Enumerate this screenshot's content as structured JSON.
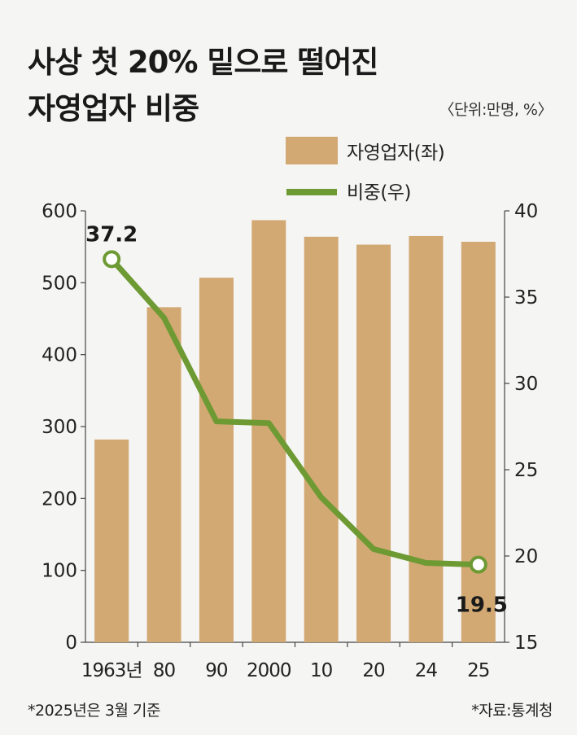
{
  "title_line1": "사상 첫 20% 밑으로 떨어진",
  "title_line2": "자영업자 비중",
  "unit": "〈단위:만명, %〉",
  "footnote": "*2025년은 3월 기준",
  "source": "*자료:통계청",
  "colors": {
    "bar": "#d2a873",
    "line": "#6e9a34",
    "background": "#f5f5f3"
  },
  "chart_data": {
    "type": "bar+line",
    "categories": [
      "1963년",
      "80",
      "90",
      "2000",
      "10",
      "20",
      "24",
      "25"
    ],
    "series": [
      {
        "name": "자영업자(좌)",
        "type": "bar",
        "axis": "left",
        "values": [
          282,
          466,
          507,
          587,
          564,
          553,
          565,
          557
        ]
      },
      {
        "name": "비중(우)",
        "type": "line",
        "axis": "right",
        "values": [
          37.2,
          33.8,
          27.8,
          27.7,
          23.4,
          20.4,
          19.6,
          19.5
        ]
      }
    ],
    "left_axis": {
      "ylim": [
        0,
        600
      ],
      "ticks": [
        0,
        100,
        200,
        300,
        400,
        500,
        600
      ]
    },
    "right_axis": {
      "ylim": [
        15,
        40
      ],
      "ticks": [
        15,
        20,
        25,
        30,
        35,
        40
      ]
    },
    "data_labels": {
      "first": "37.2",
      "last": "19.5"
    },
    "legend_position": "top-right"
  }
}
